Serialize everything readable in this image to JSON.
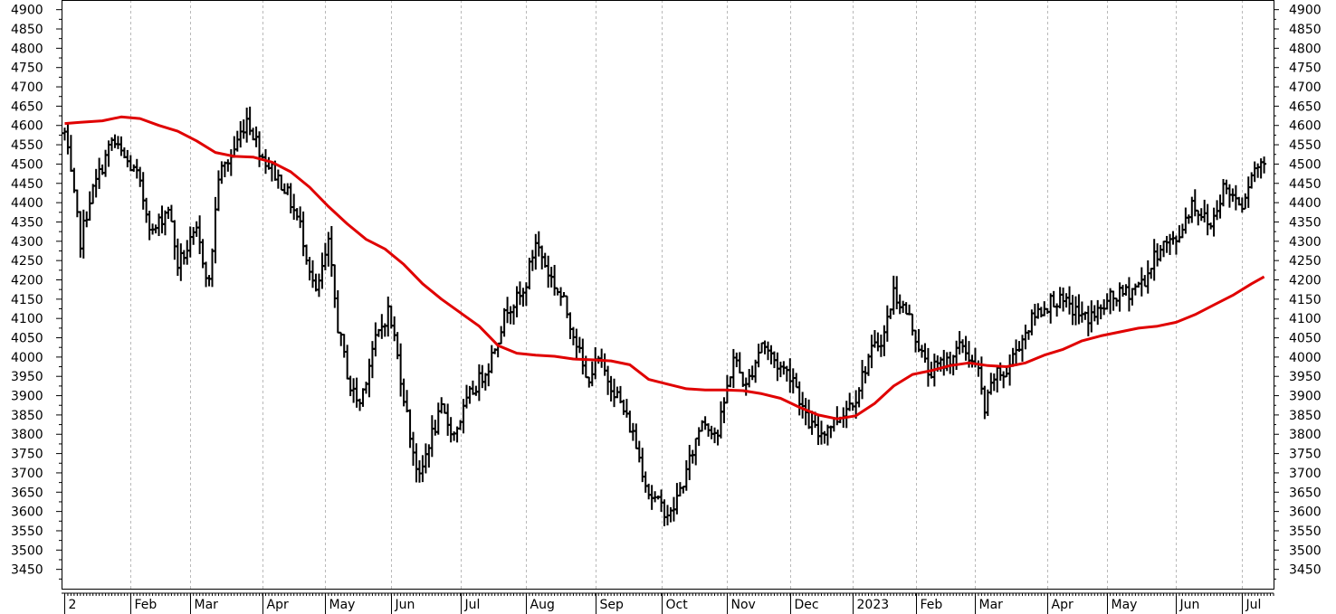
{
  "chart_data": {
    "type": "line",
    "title": "",
    "xlabel": "",
    "ylabel": "",
    "ylim": [
      3400,
      4925
    ],
    "y_ticks": [
      3450,
      3500,
      3550,
      3600,
      3650,
      3700,
      3750,
      3800,
      3850,
      3900,
      3950,
      4000,
      4050,
      4100,
      4150,
      4200,
      4250,
      4300,
      4350,
      4400,
      4450,
      4500,
      4550,
      4600,
      4650,
      4700,
      4750,
      4800,
      4850,
      4900
    ],
    "y_tick_labels": [
      "3450",
      "3500",
      "3550",
      "3600",
      "3650",
      "3700",
      "3750",
      "3800",
      "3850",
      "3900",
      "3950",
      "4000",
      "4050",
      "4100",
      "4150",
      "4200",
      "4250",
      "4300",
      "4350",
      "4400",
      "4450",
      "4500",
      "4550",
      "4600",
      "4650",
      "4700",
      "4750",
      "4800",
      "4850",
      "4900"
    ],
    "y_axes": "left and right",
    "x_month_labels": [
      "2",
      "Feb",
      "Mar",
      "Apr",
      "May",
      "Jun",
      "Jul",
      "Aug",
      "Sep",
      "Oct",
      "Nov",
      "Dec",
      "2023",
      "Feb",
      "Mar",
      "Apr",
      "May",
      "Jun",
      "Jul"
    ],
    "x_month_index": [
      0,
      21,
      40,
      63,
      83,
      104,
      126,
      147,
      169,
      190,
      211,
      231,
      251,
      271,
      290,
      313,
      332,
      354,
      375
    ],
    "x_range_trading_days": [
      -1,
      385
    ],
    "grid": "vertical dashed at month starts",
    "legend": "none",
    "colors": {
      "price_bars": "#000000",
      "moving_average": "#e00000",
      "grid": "#b9b9b9",
      "axis": "#000000"
    },
    "price_close_key": {
      "day": [
        0,
        5,
        8,
        15,
        23,
        28,
        33,
        36,
        42,
        46,
        49,
        53,
        58,
        63,
        70,
        75,
        80,
        84,
        87,
        91,
        94,
        98,
        103,
        105,
        110,
        113,
        116,
        120,
        124,
        129,
        135,
        141,
        146,
        150,
        154,
        159,
        163,
        166,
        170,
        176,
        181,
        186,
        189,
        193,
        198,
        203,
        208,
        213,
        217,
        222,
        227,
        232,
        236,
        240,
        246,
        252,
        256,
        261,
        264,
        269,
        275,
        281,
        286,
        291,
        293,
        296,
        300,
        303,
        309,
        315,
        320,
        325,
        330,
        333,
        339,
        344,
        349,
        354,
        359,
        365,
        369,
        375,
        378,
        382
      ],
      "close": [
        4580,
        4300,
        4410,
        4560,
        4470,
        4320,
        4390,
        4240,
        4320,
        4190,
        4470,
        4520,
        4620,
        4520,
        4440,
        4340,
        4160,
        4290,
        4080,
        3920,
        3880,
        4020,
        4120,
        4050,
        3800,
        3680,
        3780,
        3860,
        3800,
        3900,
        3980,
        4130,
        4160,
        4300,
        4220,
        4140,
        4040,
        3940,
        3990,
        3900,
        3800,
        3650,
        3620,
        3590,
        3700,
        3840,
        3800,
        4000,
        3920,
        4040,
        3980,
        3950,
        3840,
        3800,
        3840,
        3900,
        4000,
        4060,
        4170,
        4100,
        3960,
        3990,
        4030,
        3960,
        3860,
        3950,
        3960,
        4020,
        4110,
        4150,
        4130,
        4100,
        4120,
        4150,
        4170,
        4200,
        4290,
        4300,
        4400,
        4340,
        4440,
        4400,
        4480,
        4510
      ]
    },
    "series": [
      {
        "x_trading_day": [
          0,
          5,
          12,
          18,
          24,
          30,
          36,
          42,
          48,
          54,
          60,
          66,
          72,
          78,
          84,
          90,
          96,
          102,
          108,
          114,
          120,
          126,
          132,
          138,
          144,
          150,
          156,
          162,
          168,
          174,
          180,
          186,
          192,
          198,
          204,
          210,
          216,
          222,
          228,
          234,
          240,
          246,
          252,
          258,
          264,
          270,
          276,
          282,
          288,
          294,
          300,
          306,
          312,
          318,
          324,
          330,
          336,
          342,
          348,
          354,
          360,
          366,
          372,
          378,
          382
        ],
        "values": [
          4605,
          4608,
          4612,
          4622,
          4618,
          4600,
          4585,
          4560,
          4530,
          4520,
          4518,
          4505,
          4480,
          4440,
          4390,
          4345,
          4305,
          4280,
          4240,
          4190,
          4150,
          4115,
          4080,
          4030,
          4010,
          4005,
          4002,
          3995,
          3993,
          3990,
          3980,
          3942,
          3930,
          3918,
          3915,
          3915,
          3913,
          3905,
          3893,
          3870,
          3850,
          3840,
          3848,
          3880,
          3925,
          3955,
          3965,
          3978,
          3985,
          3978,
          3975,
          3985,
          4005,
          4020,
          4042,
          4055,
          4065,
          4075,
          4080,
          4090,
          4110,
          4135,
          4160,
          4190,
          4208
        ]
      }
    ]
  }
}
